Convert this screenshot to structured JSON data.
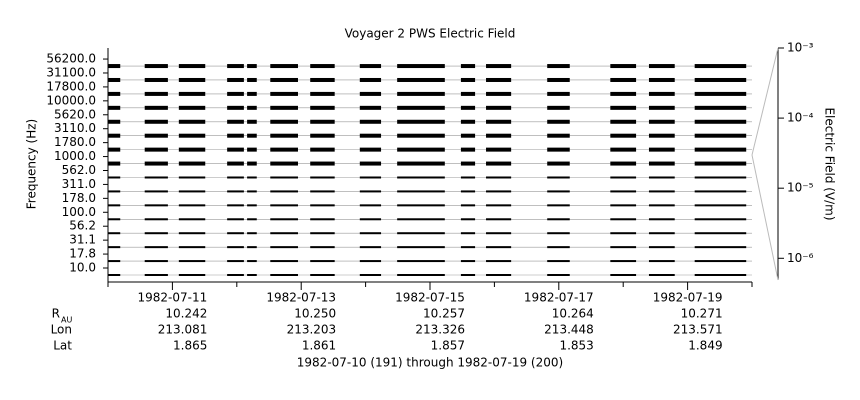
{
  "chart_data": {
    "type": "stackplot",
    "title": "Voyager 2 PWS Electric Field",
    "ylabel": "Frequency (Hz)",
    "y2label": "Electric Field (V/m)",
    "channels": [
      "10.0",
      "17.8",
      "31.1",
      "56.2",
      "100.0",
      "178.0",
      "311.0",
      "562.0",
      "1000.0",
      "1780.0",
      "3110.0",
      "5620.0",
      "10000.0",
      "17800.0",
      "31100.0",
      "56200.0"
    ],
    "color": "#000000",
    "xlim": [
      0,
      10
    ],
    "xticks": [
      {
        "value": 1,
        "label": "1982-07-11"
      },
      {
        "value": 3,
        "label": "1982-07-13"
      },
      {
        "value": 5,
        "label": "1982-07-15"
      },
      {
        "value": 7,
        "label": "1982-07-17"
      },
      {
        "value": 9,
        "label": "1982-07-19"
      }
    ],
    "xminorticks": [
      0,
      2,
      4,
      6,
      8,
      10
    ],
    "intervals": [
      [
        0,
        0.19
      ],
      [
        0.57,
        0.93
      ],
      [
        1.1,
        1.51
      ],
      [
        1.85,
        2.11
      ],
      [
        2.16,
        2.31
      ],
      [
        2.52,
        2.95
      ],
      [
        3.14,
        3.52
      ],
      [
        3.91,
        4.24
      ],
      [
        4.49,
        5.23
      ],
      [
        5.48,
        5.7
      ],
      [
        5.87,
        6.26
      ],
      [
        6.82,
        7.17
      ],
      [
        7.8,
        8.2
      ],
      [
        8.4,
        8.8
      ],
      [
        9.11,
        9.91
      ]
    ],
    "y2log": true,
    "y2lim": [
      4.9e-07,
      0.001
    ],
    "y2ticks": [
      {
        "value": 0.001,
        "label": "10⁻³"
      },
      {
        "value": 0.0001,
        "label": "10⁻⁴"
      },
      {
        "value": 1e-05,
        "label": "10⁻⁵"
      },
      {
        "value": 1e-06,
        "label": "10⁻⁶"
      }
    ],
    "ephemeris": {
      "row_labels": [
        "R",
        "Lon",
        "Lat"
      ],
      "r_subscript": "AU",
      "rows": [
        [
          "10.242",
          "10.250",
          "10.257",
          "10.264",
          "10.271"
        ],
        [
          "213.081",
          "213.203",
          "213.326",
          "213.448",
          "213.571"
        ],
        [
          "1.865",
          "1.861",
          "1.857",
          "1.853",
          "1.849"
        ]
      ]
    },
    "xlabel": "1982-07-10 (191) through 1982-07-19 (200)"
  }
}
